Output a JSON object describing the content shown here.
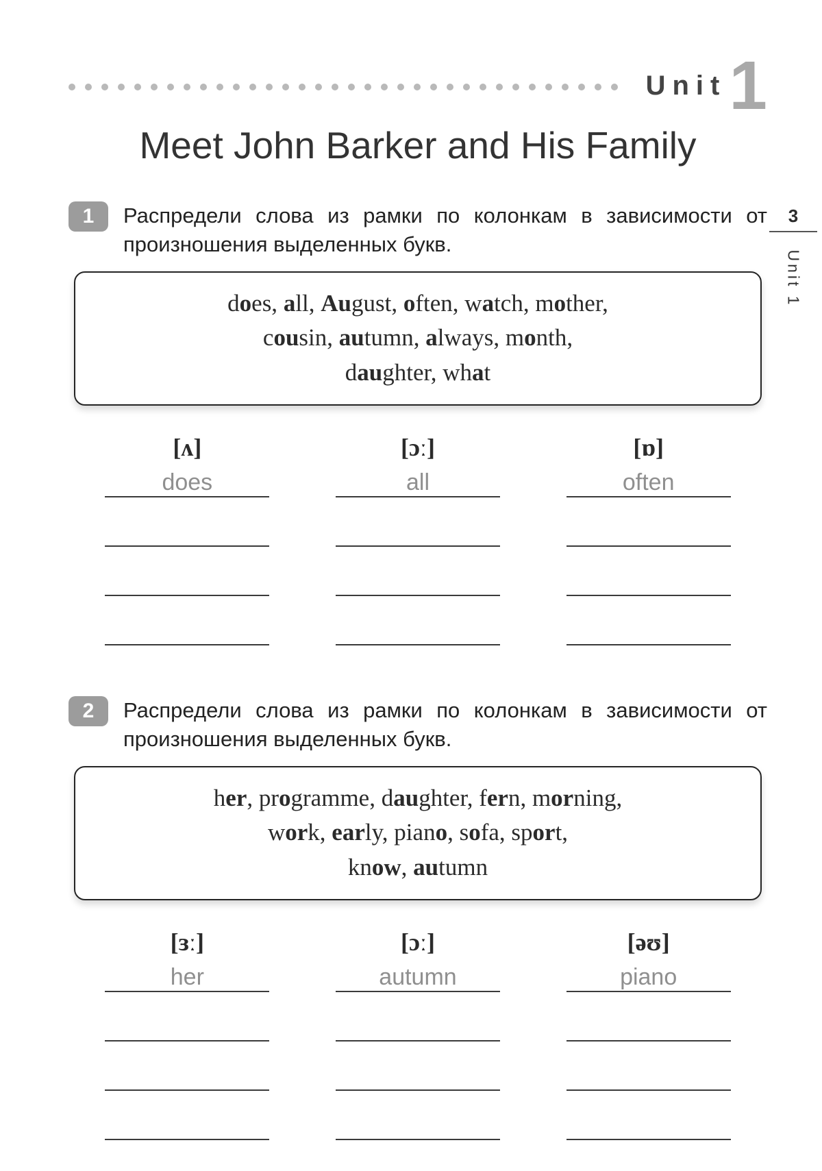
{
  "colors": {
    "page_bg": "#ffffff",
    "dot": "#b9b9b9",
    "unit_number": "#a9a9a9",
    "text": "#2b2b2b",
    "badge_bg": "#9c9c9c",
    "badge_fg": "#ffffff",
    "answer_gray": "#8f8f8f",
    "rule": "#3a3a3a"
  },
  "header": {
    "dot_count": 34,
    "unit_label": "Unit",
    "unit_number": "1",
    "title": "Meet John Barker and His Family"
  },
  "side": {
    "page_number": "3",
    "label": "Unit 1"
  },
  "ex1": {
    "badge": "1",
    "instruction": "Распредели слова из рамки по колонкам в за­висимости от произношения выделенных букв.",
    "words_html": "d<b>o</b>es, <b>a</b>ll, <b>Au</b>gust, <b>o</b>ften, w<b>a</b>tch, m<b>o</b>ther,<br>c<b>ou</b>sin, <b>au</b>tumn, <b>a</b>lways, m<b>o</b>nth,<br>d<b>au</b>ghter, wh<b>a</b>t",
    "columns": [
      {
        "phon": "[ʌ]",
        "first": "does"
      },
      {
        "phon": "[ɔː]",
        "first": "all"
      },
      {
        "phon": "[ɒ]",
        "first": "often"
      }
    ],
    "blank_rows": 3
  },
  "ex2": {
    "badge": "2",
    "instruction": "Распредели слова из рамки по колонкам в за­висимости от произношения выделенных букв.",
    "words_html": "h<b>er</b>, pr<b>o</b>gramme, d<b>au</b>ghter, f<b>er</b>n, m<b>or</b>ning,<br>w<b>or</b>k, <b>ear</b>ly, pian<b>o</b>, s<b>o</b>fa, sp<b>or</b>t,<br>kn<b>ow</b>, <b>au</b>tumn",
    "columns": [
      {
        "phon": "[ɜː]",
        "first": "her"
      },
      {
        "phon": "[ɔː]",
        "first": "autumn"
      },
      {
        "phon": "[əʊ]",
        "first": "piano"
      }
    ],
    "blank_rows": 3
  }
}
